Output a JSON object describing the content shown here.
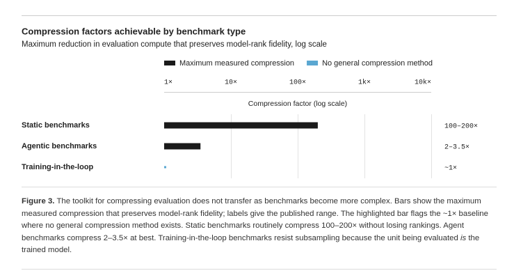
{
  "chart_data": {
    "type": "hbar",
    "title": "Compression factors achievable by benchmark type",
    "subtitle": "Maximum reduction in evaluation compute that preserves model-rank fidelity, log scale",
    "x_label": "Compression factor (log scale)",
    "categories": [
      "Static benchmarks",
      "Agentic benchmarks",
      "Training-in-the-loop"
    ],
    "series": [
      {
        "name": "Maximum measured compression",
        "color": "#1a1a1a",
        "values": [
          200,
          3.5,
          null
        ]
      },
      {
        "name": "No general compression method",
        "color": "#5aa7d1",
        "values": [
          null,
          null,
          1
        ]
      }
    ],
    "value_labels": [
      "100–200×",
      "2–3.5×",
      "~1×"
    ],
    "log_x": true,
    "xlim": [
      1,
      10000
    ],
    "xticks": [
      {
        "value": 1,
        "label": "1×"
      },
      {
        "value": 10,
        "label": "10×"
      },
      {
        "value": 100,
        "label": "100×"
      },
      {
        "value": 1000,
        "label": "1k×"
      },
      {
        "value": 10000,
        "label": "10k×"
      }
    ],
    "grid": true,
    "legend": "top"
  },
  "caption": {
    "label": "Figure 3.",
    "before": " The toolkit for compressing evaluation does not transfer as benchmarks become more complex. Bars show the maximum measured compression that preserves model-rank fidelity; labels give the published range. The highlighted bar flags the ~1× baseline where no general compression method exists. Static benchmarks routinely compress 100–200× without losing rankings. Agent benchmarks compress 2–3.5× at best. Training-in-the-loop benchmarks resist subsampling because the unit being evaluated ",
    "emphasis": "is",
    "after": " the trained model."
  }
}
